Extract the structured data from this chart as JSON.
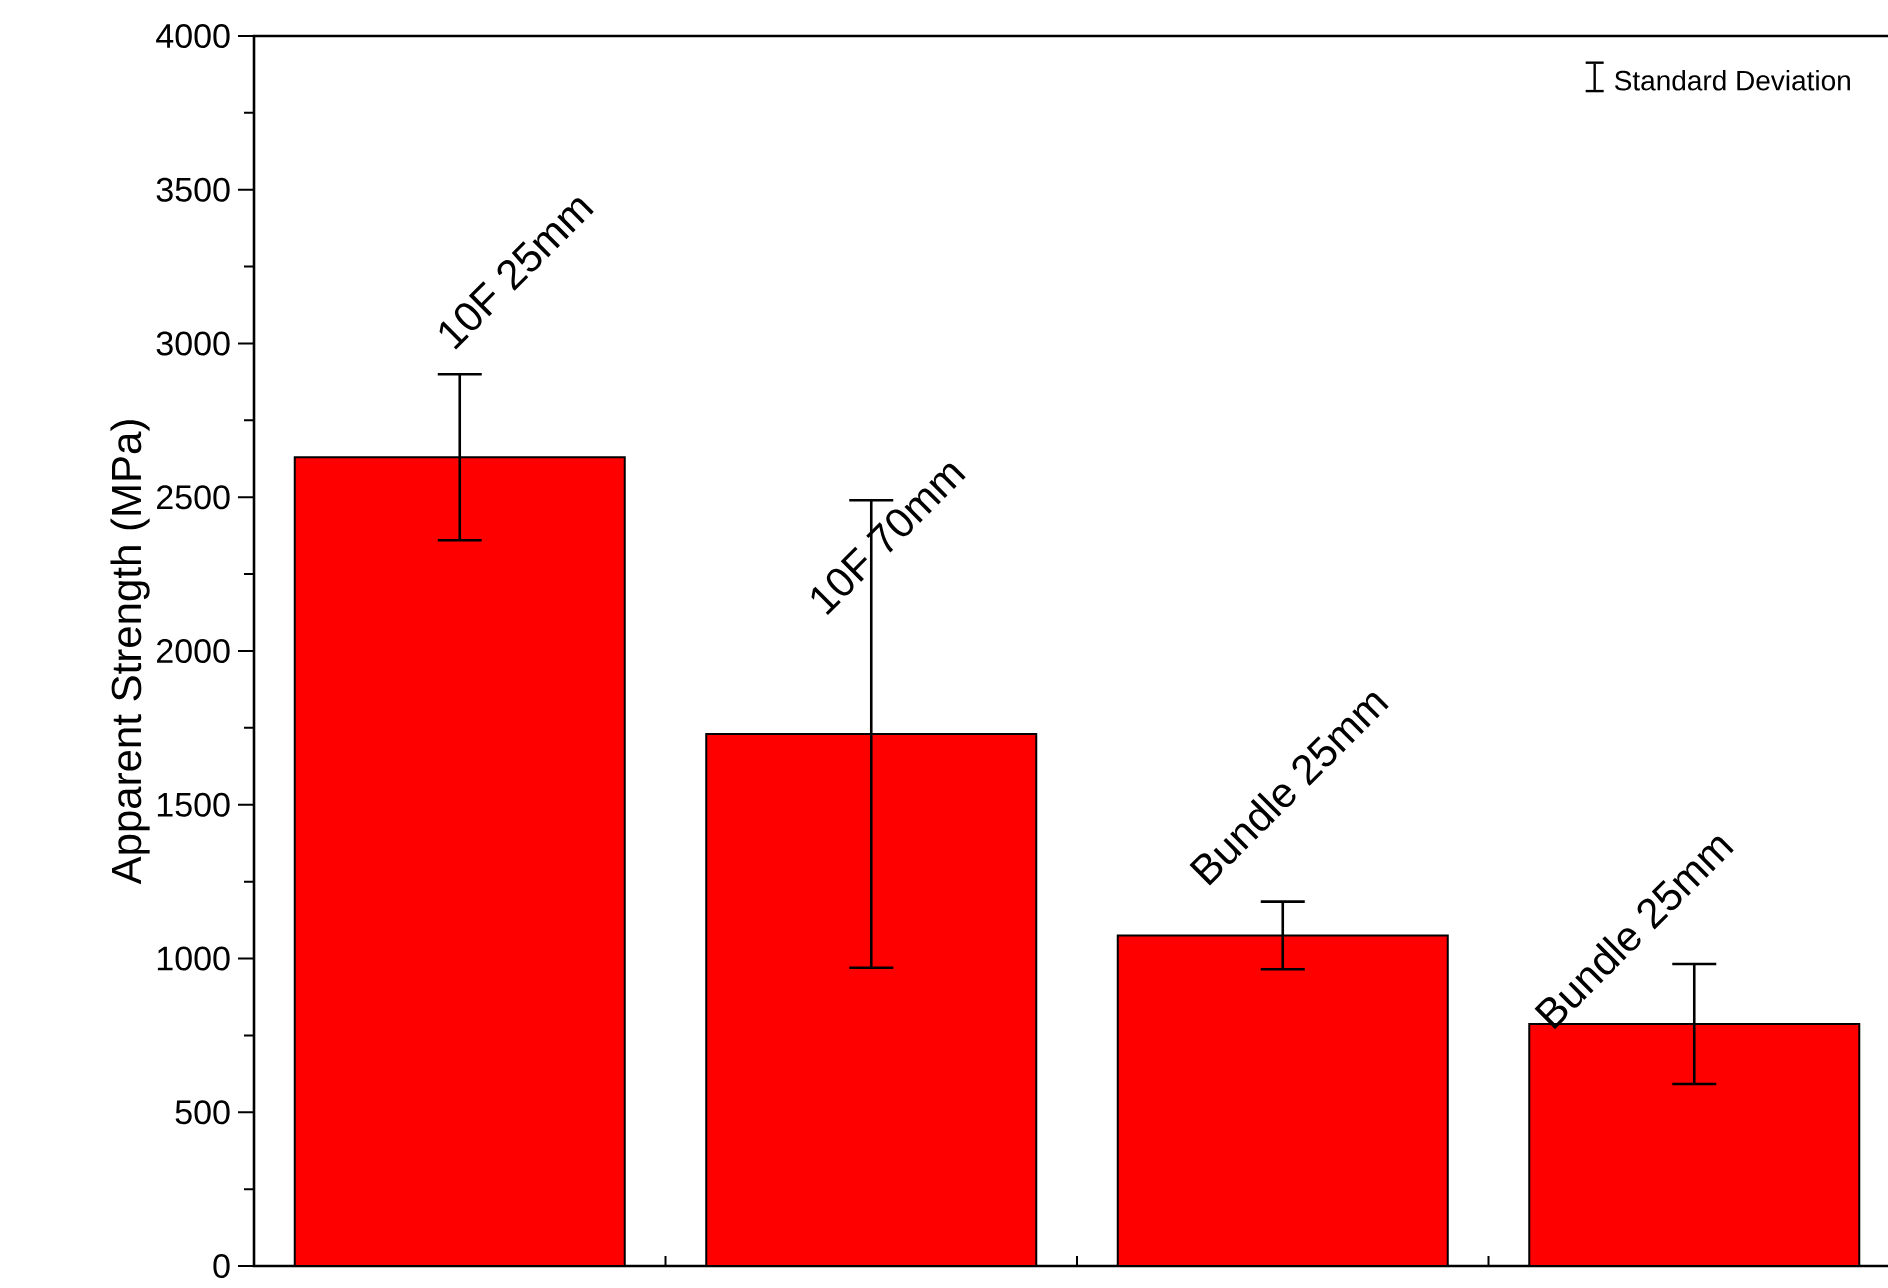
{
  "chart_data": {
    "type": "bar",
    "ylabel": "Apparent Strength (MPa)",
    "categories": [
      "10F 25mm",
      "10F 70mm",
      "Bundle 25mm",
      "Bundle 25mm"
    ],
    "values": [
      2630,
      1730,
      1075,
      787
    ],
    "errors": [
      270,
      760,
      110,
      195
    ],
    "color": "#ff0000",
    "ylim": [
      0,
      4000
    ],
    "yticks": [
      0,
      500,
      1000,
      1500,
      2000,
      2500,
      3000,
      3500,
      4000
    ],
    "tick_labels": "y",
    "annotations": [
      "Standard Deviation"
    ]
  }
}
